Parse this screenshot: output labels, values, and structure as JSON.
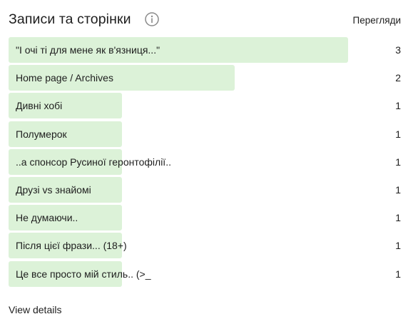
{
  "header": {
    "title": "Записи та сторінки",
    "views_label": "Перегляди"
  },
  "accent_color": "#dcf2d8",
  "max_views": 3,
  "rows": [
    {
      "label": "\"І очі ті для мене як в'язниця...\"",
      "views": 3
    },
    {
      "label": "Home page / Archives",
      "views": 2
    },
    {
      "label": "Дивні хобі",
      "views": 1
    },
    {
      "label": "Полумерок",
      "views": 1
    },
    {
      "label": "..а спонсор Русиної геронтофілії..",
      "views": 1
    },
    {
      "label": "Друзі vs знайомі",
      "views": 1
    },
    {
      "label": "Не думаючи..",
      "views": 1
    },
    {
      "label": "Після цієї фрази... (18+)",
      "views": 1
    },
    {
      "label": "Це все просто мій стиль.. (>_",
      "views": 1
    }
  ],
  "footer": {
    "view_details_label": "View details"
  }
}
